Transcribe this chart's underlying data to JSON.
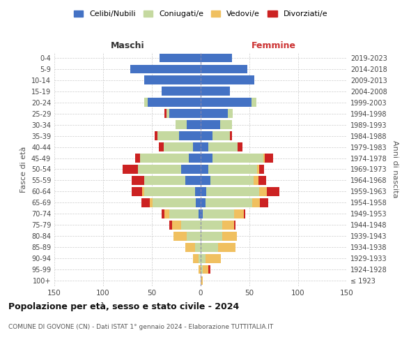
{
  "age_groups": [
    "100+",
    "95-99",
    "90-94",
    "85-89",
    "80-84",
    "75-79",
    "70-74",
    "65-69",
    "60-64",
    "55-59",
    "50-54",
    "45-49",
    "40-44",
    "35-39",
    "30-34",
    "25-29",
    "20-24",
    "15-19",
    "10-14",
    "5-9",
    "0-4"
  ],
  "birth_years": [
    "≤ 1923",
    "1924-1928",
    "1929-1933",
    "1934-1938",
    "1939-1943",
    "1944-1948",
    "1949-1953",
    "1954-1958",
    "1959-1963",
    "1964-1968",
    "1969-1973",
    "1974-1978",
    "1979-1983",
    "1984-1988",
    "1989-1993",
    "1994-1998",
    "1999-2003",
    "2004-2008",
    "2009-2013",
    "2014-2018",
    "2019-2023"
  ],
  "colors": {
    "celibe": "#4472c4",
    "coniugato": "#c5d9a0",
    "vedovo": "#f0c060",
    "divorziato": "#cc2222"
  },
  "maschi": {
    "celibe": [
      0,
      0,
      0,
      0,
      0,
      0,
      2,
      5,
      6,
      16,
      20,
      12,
      8,
      22,
      14,
      32,
      54,
      40,
      58,
      72,
      42
    ],
    "coniugato": [
      0,
      0,
      2,
      6,
      14,
      20,
      30,
      44,
      52,
      42,
      44,
      50,
      30,
      22,
      12,
      3,
      4,
      0,
      0,
      0,
      0
    ],
    "vedovo": [
      0,
      2,
      6,
      10,
      14,
      9,
      5,
      3,
      2,
      0,
      0,
      0,
      0,
      0,
      0,
      0,
      0,
      0,
      0,
      0,
      0
    ],
    "divorziato": [
      0,
      0,
      0,
      0,
      0,
      3,
      3,
      9,
      11,
      13,
      16,
      5,
      5,
      3,
      0,
      2,
      0,
      0,
      0,
      0,
      0
    ]
  },
  "femmine": {
    "celibe": [
      0,
      0,
      0,
      0,
      0,
      0,
      2,
      5,
      6,
      10,
      8,
      12,
      8,
      12,
      20,
      28,
      52,
      30,
      55,
      48,
      32
    ],
    "coniugato": [
      0,
      2,
      5,
      18,
      22,
      22,
      32,
      48,
      54,
      44,
      50,
      52,
      30,
      18,
      12,
      5,
      5,
      0,
      0,
      0,
      0
    ],
    "vedovo": [
      2,
      6,
      16,
      18,
      15,
      12,
      10,
      8,
      8,
      5,
      2,
      2,
      0,
      0,
      0,
      0,
      0,
      0,
      0,
      0,
      0
    ],
    "divorziato": [
      0,
      2,
      0,
      0,
      0,
      2,
      2,
      8,
      13,
      8,
      5,
      8,
      5,
      2,
      0,
      0,
      0,
      0,
      0,
      0,
      0
    ]
  },
  "title": "Popolazione per età, sesso e stato civile - 2024",
  "subtitle": "COMUNE DI GOVONE (CN) - Dati ISTAT 1° gennaio 2024 - Elaborazione TUTTITALIA.IT",
  "xlabel_left": "Maschi",
  "xlabel_right": "Femmine",
  "ylabel_left": "Fasce di età",
  "ylabel_right": "Anni di nascita",
  "xlim": 150,
  "legend_labels": [
    "Celibi/Nubili",
    "Coniugati/e",
    "Vedovi/e",
    "Divorziati/e"
  ]
}
